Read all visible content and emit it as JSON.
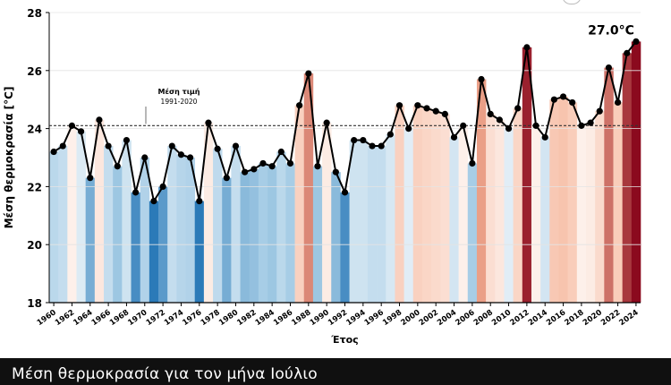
{
  "chart_data": {
    "type": "bar",
    "title": "Μέση θερμοκρασία για τον μήνα Ιούλιο",
    "xlabel": "Έτος",
    "ylabel": "Μέση θερμοκρασία [°C]",
    "ylim": [
      18,
      28
    ],
    "yticks": [
      18,
      20,
      22,
      24,
      26,
      28
    ],
    "grid": true,
    "x": [
      1960,
      1961,
      1962,
      1963,
      1964,
      1965,
      1966,
      1967,
      1968,
      1969,
      1970,
      1971,
      1972,
      1973,
      1974,
      1975,
      1976,
      1977,
      1978,
      1979,
      1980,
      1981,
      1982,
      1983,
      1984,
      1985,
      1986,
      1987,
      1988,
      1989,
      1990,
      1991,
      1992,
      1993,
      1994,
      1995,
      1996,
      1997,
      1998,
      1999,
      2000,
      2001,
      2002,
      2003,
      2004,
      2005,
      2006,
      2007,
      2008,
      2009,
      2010,
      2011,
      2012,
      2013,
      2014,
      2015,
      2016,
      2017,
      2018,
      2019,
      2020,
      2021,
      2022,
      2023,
      2024
    ],
    "xticks": [
      1960,
      1962,
      1964,
      1966,
      1968,
      1970,
      1972,
      1974,
      1976,
      1978,
      1980,
      1982,
      1984,
      1986,
      1988,
      1990,
      1992,
      1994,
      1996,
      1998,
      2000,
      2002,
      2004,
      2006,
      2008,
      2010,
      2012,
      2014,
      2016,
      2018,
      2020,
      2022,
      2024
    ],
    "values": [
      23.2,
      23.4,
      24.1,
      23.9,
      22.3,
      24.3,
      23.4,
      22.7,
      23.6,
      21.8,
      23.0,
      21.5,
      22.0,
      23.4,
      23.1,
      23.0,
      21.5,
      24.2,
      23.3,
      22.3,
      23.4,
      22.5,
      22.6,
      22.8,
      22.7,
      23.2,
      22.8,
      24.8,
      25.9,
      22.7,
      24.2,
      22.5,
      21.8,
      23.6,
      23.6,
      23.4,
      23.4,
      23.8,
      24.8,
      24.0,
      24.8,
      24.7,
      24.6,
      24.5,
      23.7,
      24.1,
      22.8,
      25.7,
      24.5,
      24.3,
      24.0,
      24.7,
      26.8,
      24.1,
      23.7,
      25.0,
      25.1,
      24.9,
      24.1,
      24.2,
      24.6,
      26.1,
      24.9,
      26.6,
      27.0
    ],
    "reference_line": {
      "value": 24.1,
      "label": "Μέση τιμή",
      "sublabel": "1991-2020"
    },
    "annotation": {
      "year": 2024,
      "text": "27.0°C"
    }
  },
  "footer": {
    "title": "Μέση θερμοκρασία για τον μήνα Ιούλιο"
  },
  "colors": {
    "footer_bg": "#101010",
    "line": "#000000",
    "warm_max": "#8b0a1e",
    "cool_max": "#2b7ab8"
  }
}
